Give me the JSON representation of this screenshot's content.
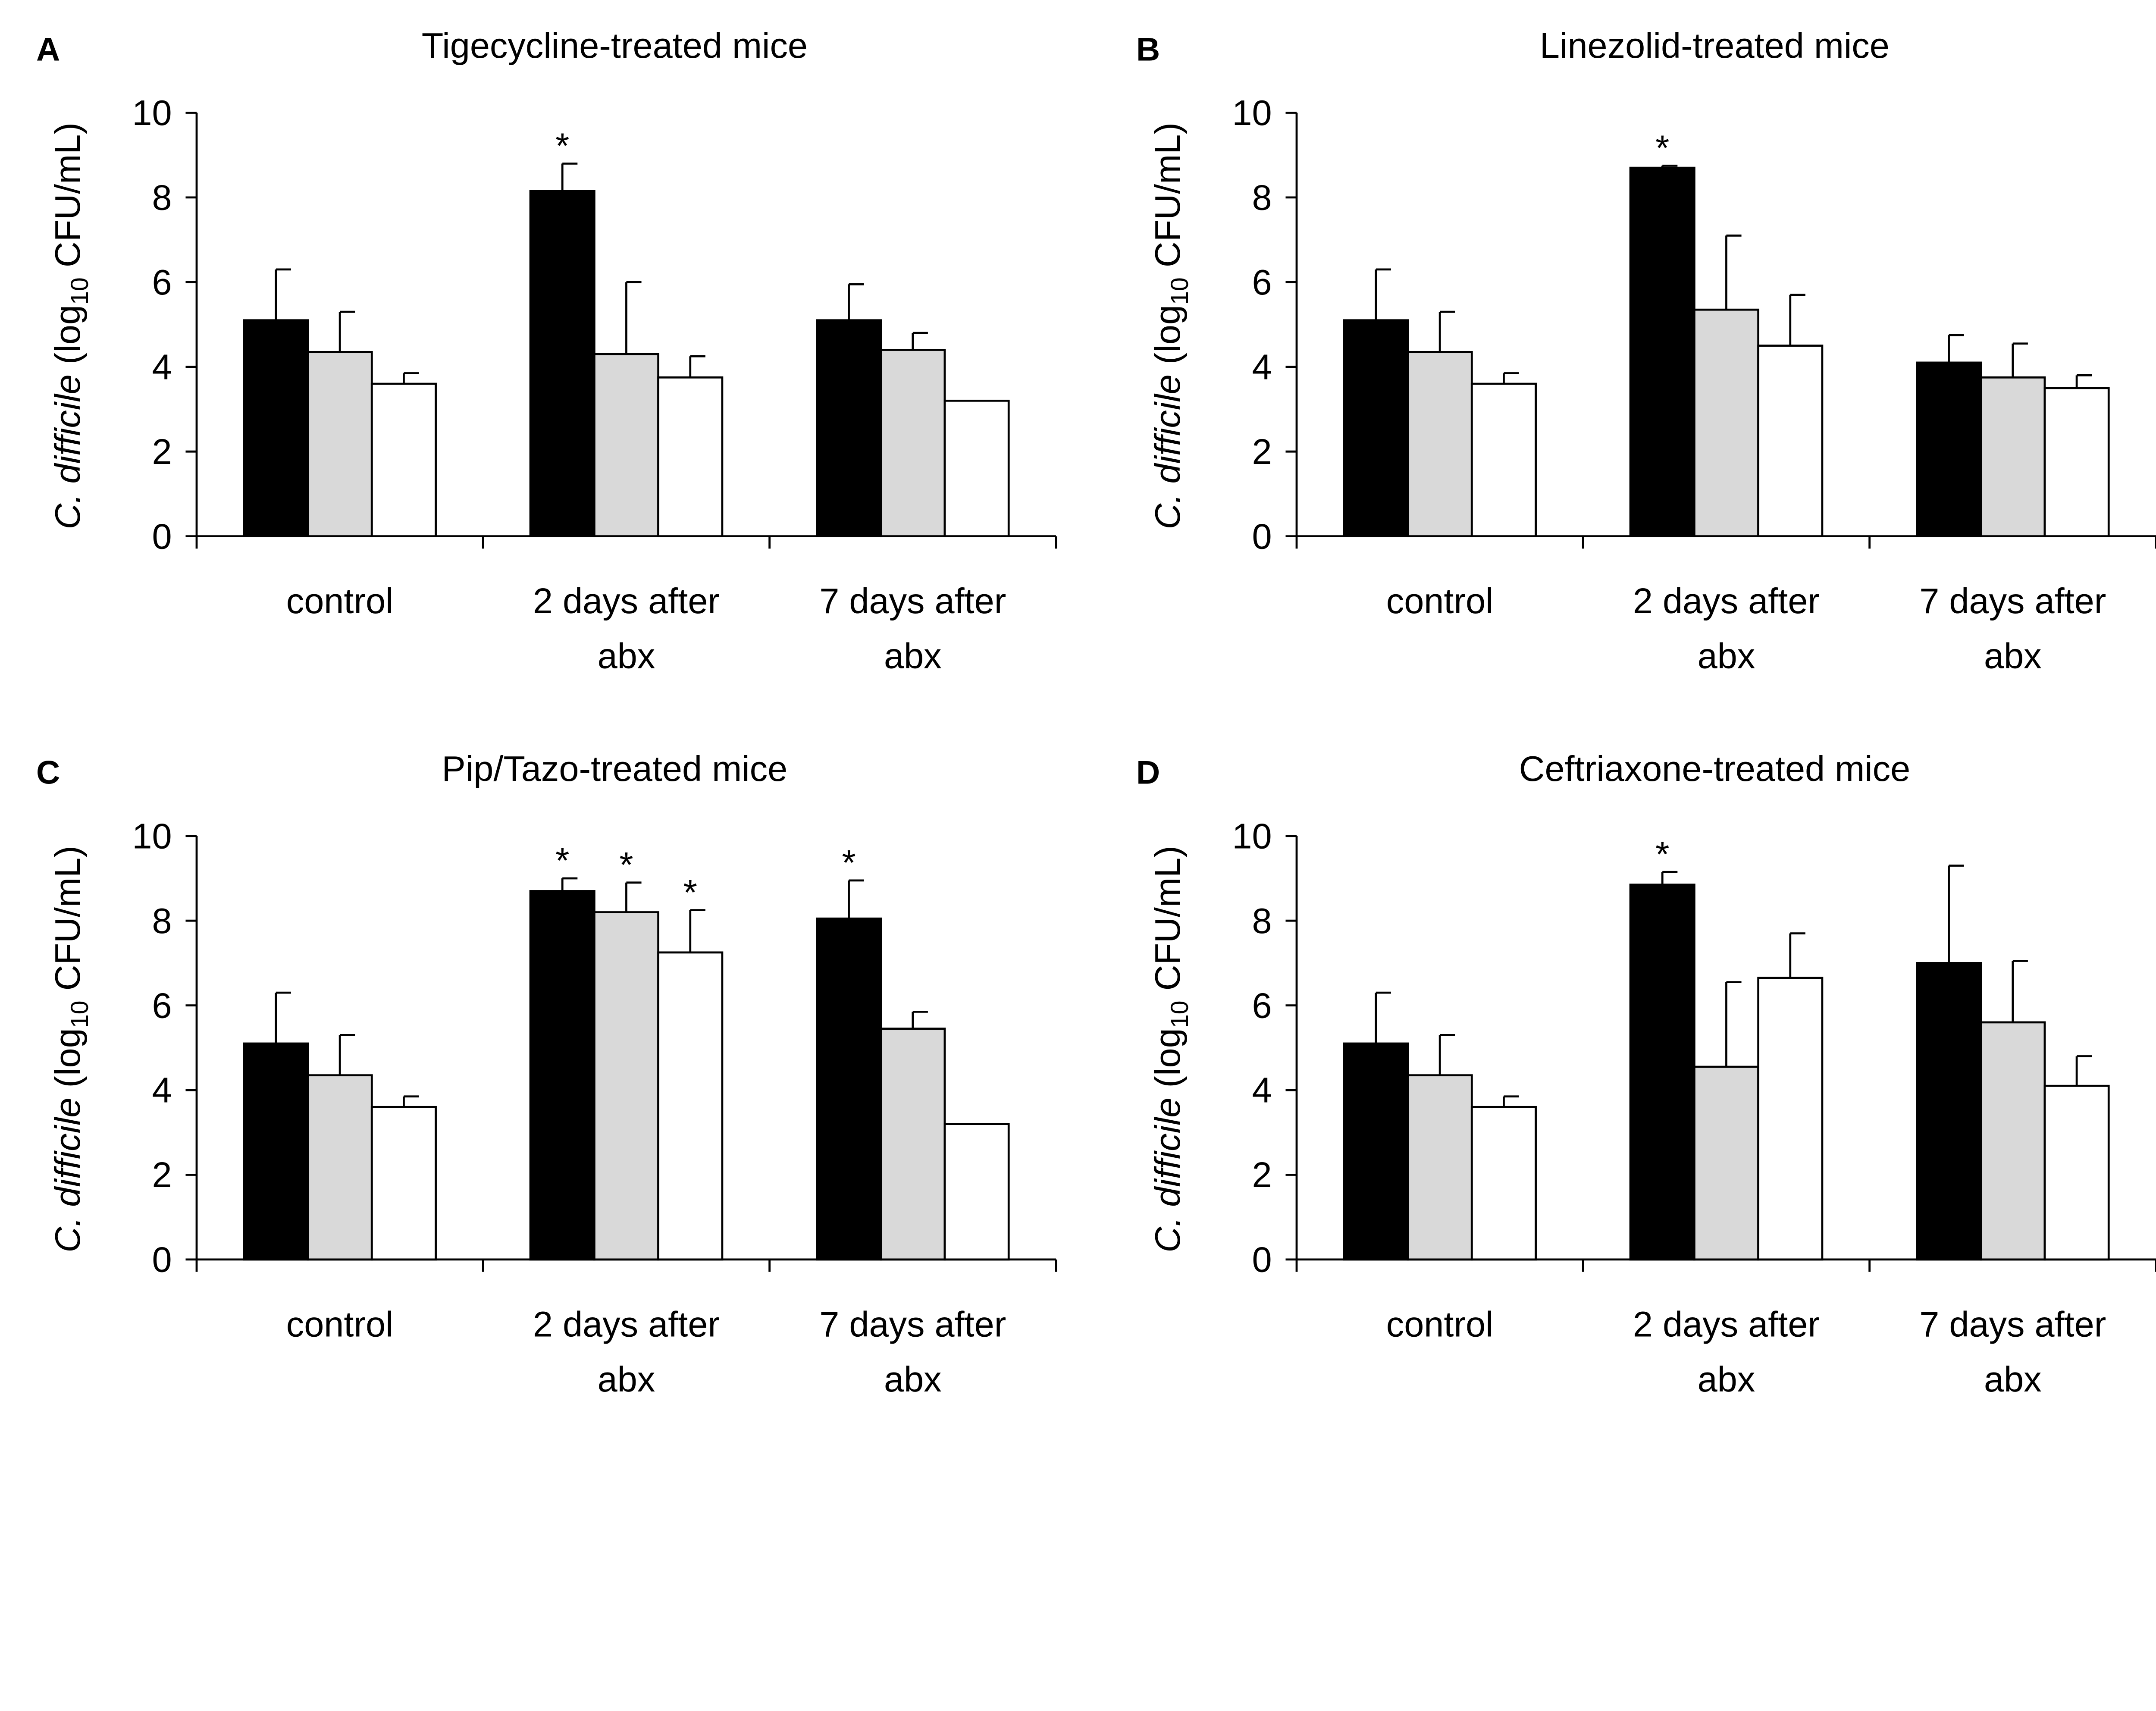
{
  "chart_data": [
    {
      "type": "bar",
      "panel": "A",
      "title": "Tigecycline-treated mice",
      "ylabel_italic": "C. difficile",
      "ylabel_rest": " (log",
      "ylabel_sub": "10",
      "ylabel_end": " CFU/mL)",
      "ylim": [
        0,
        10
      ],
      "yticks": [
        0,
        2,
        4,
        6,
        8,
        10
      ],
      "categories": [
        [
          "control"
        ],
        [
          "2 days after",
          "abx"
        ],
        [
          "7 days after",
          "abx"
        ]
      ],
      "series": [
        {
          "name": "black",
          "color": "#000000",
          "values": [
            5.1,
            8.15,
            5.1
          ],
          "err": [
            1.2,
            0.65,
            0.85
          ],
          "sig": [
            false,
            true,
            false
          ]
        },
        {
          "name": "gray",
          "color": "#d9d9d9",
          "values": [
            4.35,
            4.3,
            4.4
          ],
          "err": [
            0.95,
            1.7,
            0.4
          ],
          "sig": [
            false,
            false,
            false
          ]
        },
        {
          "name": "white",
          "color": "#ffffff",
          "values": [
            3.6,
            3.75,
            3.2
          ],
          "err": [
            0.25,
            0.5,
            0.0
          ],
          "sig": [
            false,
            false,
            false
          ]
        }
      ]
    },
    {
      "type": "bar",
      "panel": "B",
      "title": "Linezolid-treated mice",
      "ylabel_italic": "C. difficile",
      "ylabel_rest": " (log",
      "ylabel_sub": "10",
      "ylabel_end": " CFU/mL)",
      "ylim": [
        0,
        10
      ],
      "yticks": [
        0,
        2,
        4,
        6,
        8,
        10
      ],
      "categories": [
        [
          "control"
        ],
        [
          "2 days after",
          "abx"
        ],
        [
          "7 days after",
          "abx"
        ]
      ],
      "series": [
        {
          "name": "black",
          "color": "#000000",
          "values": [
            5.1,
            8.7,
            4.1
          ],
          "err": [
            1.2,
            0.05,
            0.65
          ],
          "sig": [
            false,
            true,
            false
          ]
        },
        {
          "name": "gray",
          "color": "#d9d9d9",
          "values": [
            4.35,
            5.35,
            3.75
          ],
          "err": [
            0.95,
            1.75,
            0.8
          ],
          "sig": [
            false,
            false,
            false
          ]
        },
        {
          "name": "white",
          "color": "#ffffff",
          "values": [
            3.6,
            4.5,
            3.5
          ],
          "err": [
            0.25,
            1.2,
            0.3
          ],
          "sig": [
            false,
            false,
            false
          ]
        }
      ]
    },
    {
      "type": "bar",
      "panel": "C",
      "title": "Pip/Tazo-treated mice",
      "ylabel_italic": "C. difficile",
      "ylabel_rest": " (log",
      "ylabel_sub": "10",
      "ylabel_end": " CFU/mL)",
      "ylim": [
        0,
        10
      ],
      "yticks": [
        0,
        2,
        4,
        6,
        8,
        10
      ],
      "categories": [
        [
          "control"
        ],
        [
          "2 days after",
          "abx"
        ],
        [
          "7 days after",
          "abx"
        ]
      ],
      "series": [
        {
          "name": "black",
          "color": "#000000",
          "values": [
            5.1,
            8.7,
            8.05
          ],
          "err": [
            1.2,
            0.3,
            0.9
          ],
          "sig": [
            false,
            true,
            true
          ]
        },
        {
          "name": "gray",
          "color": "#d9d9d9",
          "values": [
            4.35,
            8.2,
            5.45
          ],
          "err": [
            0.95,
            0.7,
            0.4
          ],
          "sig": [
            false,
            true,
            false
          ]
        },
        {
          "name": "white",
          "color": "#ffffff",
          "values": [
            3.6,
            7.25,
            3.2
          ],
          "err": [
            0.25,
            1.0,
            0.0
          ],
          "sig": [
            false,
            true,
            false
          ]
        }
      ]
    },
    {
      "type": "bar",
      "panel": "D",
      "title": "Ceftriaxone-treated mice",
      "ylabel_italic": "C. difficile",
      "ylabel_rest": " (log",
      "ylabel_sub": "10",
      "ylabel_end": " CFU/mL)",
      "ylim": [
        0,
        10
      ],
      "yticks": [
        0,
        2,
        4,
        6,
        8,
        10
      ],
      "categories": [
        [
          "control"
        ],
        [
          "2 days after",
          "abx"
        ],
        [
          "7 days after",
          "abx"
        ]
      ],
      "series": [
        {
          "name": "black",
          "color": "#000000",
          "values": [
            5.1,
            8.85,
            7.0
          ],
          "err": [
            1.2,
            0.3,
            2.3
          ],
          "sig": [
            false,
            true,
            false
          ]
        },
        {
          "name": "gray",
          "color": "#d9d9d9",
          "values": [
            4.35,
            4.55,
            5.6
          ],
          "err": [
            0.95,
            2.0,
            1.45
          ],
          "sig": [
            false,
            false,
            false
          ]
        },
        {
          "name": "white",
          "color": "#ffffff",
          "values": [
            3.6,
            6.65,
            4.1
          ],
          "err": [
            0.25,
            1.05,
            0.7
          ],
          "sig": [
            false,
            false,
            false
          ]
        }
      ]
    }
  ],
  "sig_marker": "*"
}
